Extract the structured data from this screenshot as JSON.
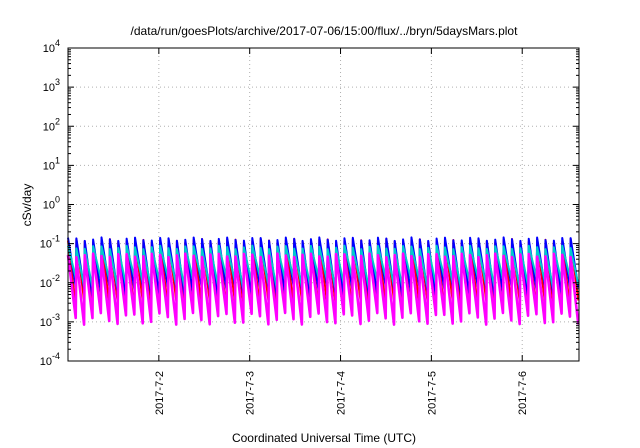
{
  "chart_data": {
    "type": "line",
    "title": "/data/run/goesPlots/archive/2017-07-06/15:00/flux/../bryn/5daysMars.plot",
    "xlabel": "Coordinated Universal Time (UTC)",
    "ylabel": "cSv/day",
    "yscale": "log",
    "ylim": [
      0.0001,
      10000
    ],
    "xlim": [
      "2017-07-01 00:00",
      "2017-07-06 15:00"
    ],
    "grid": true,
    "y_ticks": [
      {
        "base": "10",
        "exp": "-4",
        "value": 0.0001
      },
      {
        "base": "10",
        "exp": "-3",
        "value": 0.001
      },
      {
        "base": "10",
        "exp": "-2",
        "value": 0.01
      },
      {
        "base": "10",
        "exp": "-1",
        "value": 0.1
      },
      {
        "base": "10",
        "exp": "0",
        "value": 1
      },
      {
        "base": "10",
        "exp": "1",
        "value": 10
      },
      {
        "base": "10",
        "exp": "2",
        "value": 100
      },
      {
        "base": "10",
        "exp": "3",
        "value": 1000
      },
      {
        "base": "10",
        "exp": "4",
        "value": 10000
      }
    ],
    "x_ticks": [
      "2017-7-2",
      "2017-7-3",
      "2017-7-4",
      "2017-7-5",
      "2017-7-6"
    ],
    "x_tick_values": [
      "2017-07-02 00:00",
      "2017-07-03 00:00",
      "2017-07-04 00:00",
      "2017-07-05 00:00",
      "2017-07-06 00:00"
    ],
    "pattern": {
      "description_shape": "sawtooth",
      "cycles": 61,
      "start": "2017-07-01 00:00",
      "end": "2017-07-06 15:00"
    },
    "series": [
      {
        "color": "#ff0000",
        "peak": 0.12,
        "trough": 0.0025
      },
      {
        "color": "#0000ff",
        "peak": 0.13,
        "trough": 0.006
      },
      {
        "color": "#00cccc",
        "peak": 0.08,
        "trough": 0.01
      },
      {
        "color": "#ff00ff",
        "peak": 0.05,
        "trough": 0.0012
      }
    ],
    "colors": {
      "grid": "#b0b0b0",
      "axis": "#000000"
    }
  }
}
